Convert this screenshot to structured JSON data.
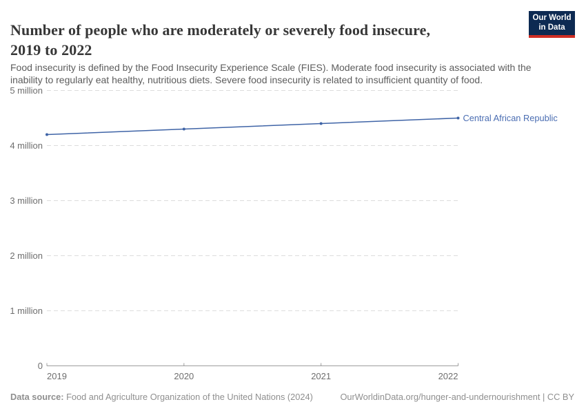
{
  "header": {
    "title_lines": {
      "line1": "Number of people who are moderately or severely food insecure,",
      "line2": "2019 to 2022"
    },
    "subtitle_lines": {
      "line1": "Food insecurity is defined by the Food Insecurity Experience Scale (FIES). Moderate food insecurity is associated with the",
      "line2": "inability to regularly eat healthy, nutritious diets. Severe food insecurity is related to insufficient quantity of food."
    },
    "logo": {
      "line1": "Our World",
      "line2": "in Data",
      "bg_color": "#0d2a52",
      "accent_color": "#cf2d24"
    }
  },
  "chart_data": {
    "type": "line",
    "title": "Number of people who are moderately or severely food insecure, 2019 to 2022",
    "x": [
      2019,
      2020,
      2021,
      2022
    ],
    "xtick_labels": [
      "2019",
      "2020",
      "2021",
      "2022"
    ],
    "series": [
      {
        "name": "Central African Republic",
        "values": [
          4200000,
          4300000,
          4400000,
          4500000
        ],
        "color": "#3e63a6",
        "label_color": "#4a6db2"
      }
    ],
    "xlabel": "",
    "ylabel": "",
    "ylim": [
      0,
      5000000
    ],
    "yticks": [
      {
        "value": 0,
        "label": "0"
      },
      {
        "value": 1000000,
        "label": "1 million"
      },
      {
        "value": 2000000,
        "label": "2 million"
      },
      {
        "value": 3000000,
        "label": "3 million"
      },
      {
        "value": 4000000,
        "label": "4 million"
      },
      {
        "value": 5000000,
        "label": "5 million"
      }
    ],
    "grid": "horizontal-dashed",
    "legend": "end-of-line-label",
    "colors": {
      "grid": "#dcdcdc",
      "axis": "#9c9c9c",
      "tick_text": "#6e6e6e"
    }
  },
  "footer": {
    "data_source_label": "Data source:",
    "data_source_value": " Food and Agriculture Organization of the United Nations (2024)",
    "license": "OurWorldinData.org/hunger-and-undernourishment | CC BY"
  }
}
